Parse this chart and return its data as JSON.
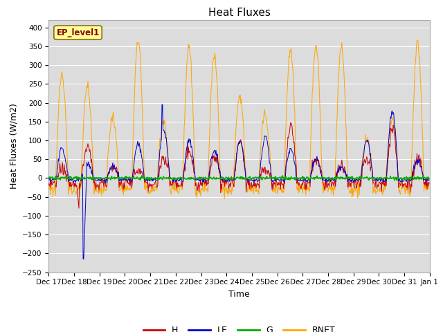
{
  "title": "Heat Fluxes",
  "ylabel": "Heat Fluxes (W/m2)",
  "xlabel": "Time",
  "annotation": "EP_level1",
  "ylim": [
    -250,
    420
  ],
  "yticks": [
    -250,
    -200,
    -150,
    -100,
    -50,
    0,
    50,
    100,
    150,
    200,
    250,
    300,
    350,
    400
  ],
  "x_tick_labels": [
    "Dec 17",
    "Dec 18",
    "Dec 19",
    "Dec 20",
    "Dec 21",
    "Dec 22",
    "Dec 23",
    "Dec 24",
    "Dec 25",
    "Dec 26",
    "Dec 27",
    "Dec 28",
    "Dec 29",
    "Dec 30",
    "Dec 31",
    "Jan 1"
  ],
  "legend_labels": [
    "H",
    "LE",
    "G",
    "RNET"
  ],
  "line_colors": [
    "#cc0000",
    "#0000cc",
    "#00aa00",
    "#ffa500"
  ],
  "bg_color": "#dcdcdc",
  "grid_color": "#ffffff",
  "title_fontsize": 11,
  "label_fontsize": 9,
  "tick_fontsize": 7.5
}
